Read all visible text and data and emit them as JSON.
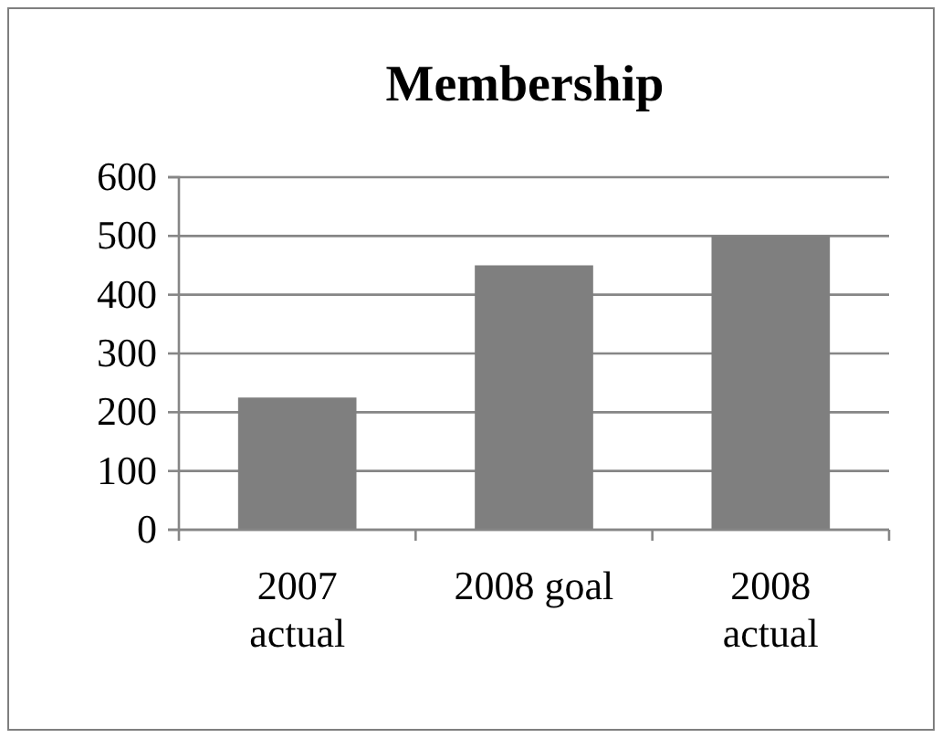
{
  "chart_data": {
    "type": "bar",
    "title": "Membership",
    "categories": [
      "2007 actual",
      "2008 goal",
      "2008 actual"
    ],
    "values": [
      225,
      450,
      500
    ],
    "color": "#7f7f7f",
    "ylim": [
      0,
      600
    ],
    "yticks": [
      0,
      100,
      200,
      300,
      400,
      500,
      600
    ],
    "grid": "y"
  }
}
